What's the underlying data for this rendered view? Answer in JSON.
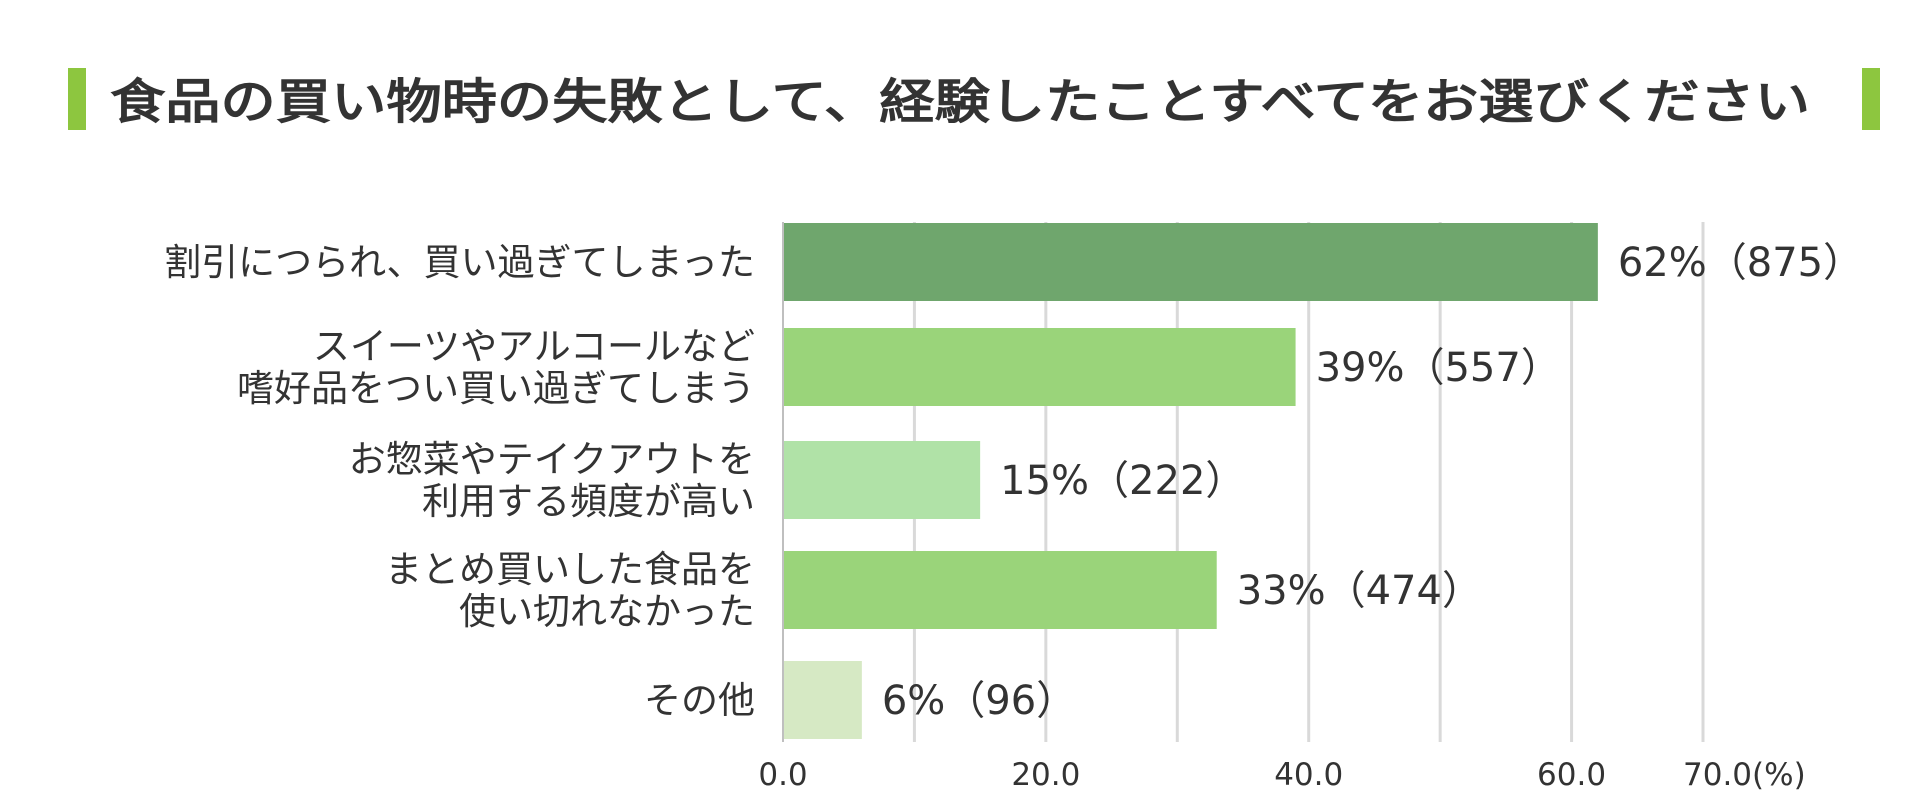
{
  "title": "食品の買い物時の失敗として、経験したことすべてをお選びください",
  "colors": {
    "title_marker": "#8dc63f",
    "grid": "#d9d9d9",
    "axis": "#bfbfbf",
    "text": "#333333"
  },
  "chart_data": {
    "type": "bar",
    "orientation": "horizontal",
    "categories": [
      [
        "割引につられ、買い過ぎてしまった"
      ],
      [
        "スイーツやアルコールなど",
        "嗜好品をつい買い過ぎてしまう"
      ],
      [
        "お惣菜やテイクアウトを",
        "利用する頻度が高い"
      ],
      [
        "まとめ買いした食品を",
        "使い切れなかった"
      ],
      [
        "その他"
      ]
    ],
    "values": [
      62,
      39,
      15,
      33,
      6
    ],
    "data_labels": [
      "62%（875）",
      "39%（557）",
      "15%（222）",
      "33%（474）",
      "6%（96）"
    ],
    "bar_colors": [
      "#6fa66d",
      "#9ad47a",
      "#b0e2a7",
      "#9ad47a",
      "#d6e9c4"
    ],
    "xlim": [
      0,
      70
    ],
    "grid_step": 10,
    "x_tick_values": [
      0,
      20,
      40,
      60,
      70
    ],
    "x_tick_labels": [
      "0.0",
      "20.0",
      "40.0",
      "60.0",
      "70.0(%)"
    ],
    "grid": true
  }
}
